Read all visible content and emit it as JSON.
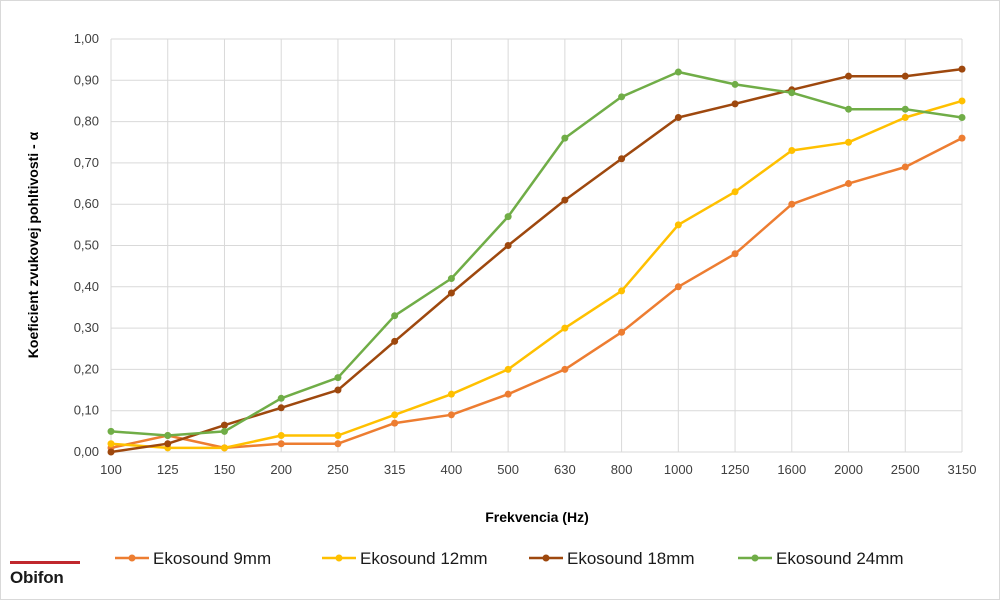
{
  "brand": {
    "name": "Obifon",
    "accent": "#c0282d"
  },
  "chart_data": {
    "type": "line",
    "xlabel": "Frekvencia (Hz)",
    "ylabel": "Koeficient zvukovej pohltivosti - α",
    "categories": [
      "100",
      "125",
      "150",
      "200",
      "250",
      "315",
      "400",
      "500",
      "630",
      "800",
      "1000",
      "1250",
      "1600",
      "2000",
      "2500",
      "3150"
    ],
    "ylim": [
      0,
      1
    ],
    "yticks": [
      "0,00",
      "0,10",
      "0,20",
      "0,30",
      "0,40",
      "0,50",
      "0,60",
      "0,70",
      "0,80",
      "0,90",
      "1,00"
    ],
    "grid": "vertical and horizontal",
    "legend": "bottom",
    "series": [
      {
        "name": "Ekosound 9mm",
        "color": "#ed7d31",
        "values": [
          0.01,
          0.04,
          0.01,
          0.02,
          0.02,
          0.07,
          0.09,
          0.14,
          0.2,
          0.29,
          0.4,
          0.48,
          0.6,
          0.65,
          0.69,
          0.76
        ]
      },
      {
        "name": "Ekosound 12mm",
        "color": "#ffc000",
        "values": [
          0.02,
          0.01,
          0.01,
          0.04,
          0.04,
          0.09,
          0.14,
          0.2,
          0.3,
          0.39,
          0.55,
          0.63,
          0.73,
          0.75,
          0.81,
          0.85
        ]
      },
      {
        "name": "Ekosound 18mm",
        "color": "#9e480e",
        "values": [
          0.0,
          0.02,
          0.065,
          0.107,
          0.15,
          0.268,
          0.385,
          0.5,
          0.61,
          0.71,
          0.81,
          0.843,
          0.877,
          0.91,
          0.91,
          0.927
        ]
      },
      {
        "name": "Ekosound 24mm",
        "color": "#70ad47",
        "values": [
          0.05,
          0.04,
          0.05,
          0.13,
          0.18,
          0.33,
          0.42,
          0.57,
          0.76,
          0.86,
          0.92,
          0.89,
          0.87,
          0.83,
          0.83,
          0.81
        ]
      }
    ]
  }
}
